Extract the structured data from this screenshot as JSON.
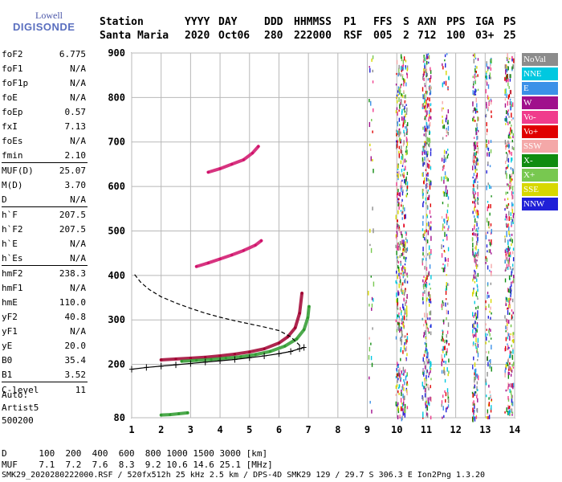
{
  "logo": {
    "line1": "Lowell",
    "line2": "DIGISONDE"
  },
  "header": {
    "labels": [
      "Station",
      "YYYY",
      "DAY",
      "DDD",
      "HHMMSS",
      "P1",
      "FFS",
      "S",
      "AXN",
      "PPS",
      "IGA",
      "PS"
    ],
    "values": [
      "Santa Maria",
      "2020",
      "Oct06",
      "280",
      "222000",
      "RSF",
      "005",
      "2",
      "712",
      "100",
      "03+",
      "25"
    ]
  },
  "params": [
    {
      "name": "foF2",
      "value": "6.775"
    },
    {
      "name": "foF1",
      "value": "N/A"
    },
    {
      "name": "foF1p",
      "value": "N/A"
    },
    {
      "name": "foE",
      "value": "N/A"
    },
    {
      "name": "foEp",
      "value": "0.57"
    },
    {
      "name": "fxI",
      "value": "7.13"
    },
    {
      "name": "foEs",
      "value": "N/A"
    },
    {
      "name": "fmin",
      "value": "2.10"
    },
    {
      "name": "MUF(D)",
      "value": "25.07",
      "sep": true
    },
    {
      "name": "M(D)",
      "value": "3.70"
    },
    {
      "name": "D",
      "value": "N/A"
    },
    {
      "name": "h`F",
      "value": "207.5",
      "sep": true
    },
    {
      "name": "h`F2",
      "value": "207.5"
    },
    {
      "name": "h`E",
      "value": "N/A"
    },
    {
      "name": "h`Es",
      "value": "N/A"
    },
    {
      "name": "hmF2",
      "value": "238.3",
      "sep": true
    },
    {
      "name": "hmF1",
      "value": "N/A"
    },
    {
      "name": "hmE",
      "value": "110.0"
    },
    {
      "name": "yF2",
      "value": "40.8"
    },
    {
      "name": "yF1",
      "value": "N/A"
    },
    {
      "name": "yE",
      "value": "20.0"
    },
    {
      "name": "B0",
      "value": "35.4"
    },
    {
      "name": "B1",
      "value": "3.52"
    },
    {
      "name": "C-level",
      "value": "11",
      "sep": true
    }
  ],
  "auto": {
    "line1": "Auto:",
    "line2": "Artist5",
    "line3": "500200"
  },
  "legend": [
    {
      "label": "NoVal",
      "color": "#8c8c8c"
    },
    {
      "label": "NNE",
      "color": "#00c8e0"
    },
    {
      "label": "E",
      "color": "#3c90e8"
    },
    {
      "label": "W",
      "color": "#a0108c"
    },
    {
      "label": "Vo-",
      "color": "#f03c8c"
    },
    {
      "label": "Vo+",
      "color": "#e00000"
    },
    {
      "label": "SSW",
      "color": "#f4a8a8"
    },
    {
      "label": "X-",
      "color": "#108c10"
    },
    {
      "label": "X+",
      "color": "#78c850"
    },
    {
      "label": "SSE",
      "color": "#d8d800"
    },
    {
      "label": "NNW",
      "color": "#2020d8"
    }
  ],
  "bottom": {
    "line1": "D      100  200  400  600  800 1000 1500 3000 [km]",
    "line2": "MUF    7.1  7.2  7.6  8.3  9.2 10.6 14.6 25.1 [MHz]",
    "line3": "SMK29_2020280222000.RSF / 520fx512h 25 kHz 2.5 km / DPS-4D SMK29 129 / 29.7 S 306.3 E Ion2Png 1.3.20"
  },
  "chart_data": {
    "type": "scatter",
    "xlim": [
      1,
      14
    ],
    "ylim": [
      80,
      900
    ],
    "xticks": [
      1,
      2,
      3,
      4,
      5,
      6,
      7,
      8,
      9,
      10,
      11,
      12,
      13,
      14
    ],
    "yticks": [
      80,
      200,
      300,
      400,
      500,
      600,
      700,
      800,
      900
    ],
    "grid": true,
    "traces": [
      {
        "name": "O-trace F2",
        "color": "#a00030",
        "x": [
          2.0,
          2.5,
          3.0,
          3.5,
          4.0,
          4.5,
          5.0,
          5.5,
          6.0,
          6.3,
          6.55,
          6.7,
          6.78
        ],
        "y": [
          210,
          212,
          214,
          216,
          219,
          223,
          228,
          235,
          248,
          262,
          282,
          315,
          360
        ]
      },
      {
        "name": "X-trace F2",
        "color": "#2e9a2e",
        "x": [
          2.7,
          3.2,
          3.7,
          4.2,
          4.7,
          5.2,
          5.7,
          6.2,
          6.6,
          6.85,
          6.98,
          7.02
        ],
        "y": [
          207,
          209,
          211,
          214,
          217,
          222,
          229,
          241,
          257,
          278,
          305,
          330
        ]
      },
      {
        "name": "2nd hop",
        "color": "#d0106a",
        "x": [
          3.2,
          3.6,
          4.0,
          4.4,
          4.8,
          5.2,
          5.4
        ],
        "y": [
          420,
          428,
          437,
          446,
          456,
          468,
          478
        ]
      },
      {
        "name": "3rd hop",
        "color": "#d0106a",
        "x": [
          3.6,
          4.0,
          4.4,
          4.8,
          5.1,
          5.3
        ],
        "y": [
          632,
          640,
          650,
          660,
          675,
          690
        ]
      },
      {
        "name": "E region echo",
        "color": "#2e9a2e",
        "x": [
          2.0,
          2.3,
          2.6,
          2.9
        ],
        "y": [
          86,
          87,
          89,
          91
        ]
      }
    ],
    "profile": {
      "x": [
        1.1,
        1.3,
        1.6,
        2.0,
        2.5,
        3.0,
        3.5,
        4.0,
        4.5,
        5.0,
        5.5,
        6.0,
        6.4,
        6.78
      ],
      "y": [
        402,
        385,
        368,
        352,
        338,
        326,
        315,
        306,
        298,
        291,
        284,
        276,
        262,
        238
      ]
    },
    "virtual_model": {
      "x": [
        1.0,
        1.5,
        2.0,
        2.5,
        3.0,
        3.5,
        4.0,
        4.5,
        5.0,
        5.5,
        6.0,
        6.4,
        6.7,
        6.85
      ],
      "y": [
        189,
        193,
        196,
        199,
        202,
        205,
        208,
        211,
        215,
        219,
        224,
        229,
        235,
        238
      ]
    }
  }
}
